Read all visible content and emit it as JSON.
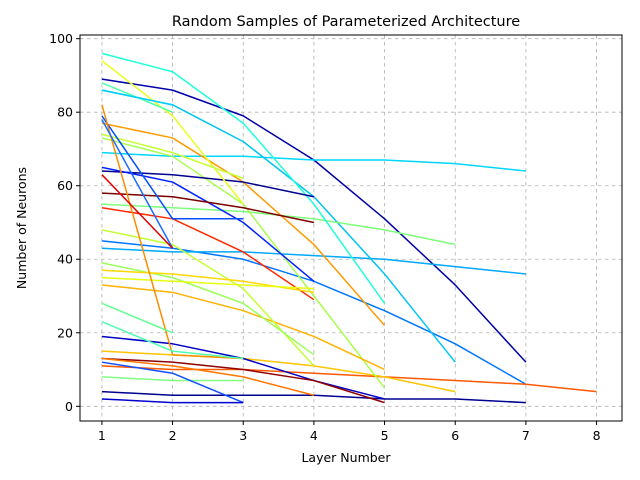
{
  "chart_data": {
    "type": "line",
    "title": "Random Samples of Parameterized Architecture",
    "xlabel": "Layer Number",
    "ylabel": "Number of Neurons",
    "xlim": [
      0.69,
      8.36
    ],
    "ylim": [
      -4,
      101
    ],
    "xticks": [
      1,
      2,
      3,
      4,
      5,
      6,
      7,
      8
    ],
    "yticks": [
      0,
      20,
      40,
      60,
      80,
      100
    ],
    "grid": true,
    "legend": "none",
    "series": [
      {
        "color": "#0000aa",
        "x": [
          1,
          2,
          3,
          4,
          5,
          6,
          7
        ],
        "y": [
          89,
          86,
          79,
          67,
          51,
          33,
          12
        ]
      },
      {
        "color": "#00d6ff",
        "x": [
          1,
          2,
          3,
          4,
          5,
          6,
          7
        ],
        "y": [
          69,
          68,
          68,
          67,
          67,
          66,
          64
        ]
      },
      {
        "color": "#0076ff",
        "x": [
          1,
          2,
          3,
          4,
          5,
          6,
          7
        ],
        "y": [
          45,
          43,
          40,
          34,
          26,
          17,
          6
        ]
      },
      {
        "color": "#00a8ff",
        "x": [
          1,
          2,
          3,
          4,
          5,
          6,
          7
        ],
        "y": [
          43,
          42,
          42,
          41,
          40,
          38,
          36
        ]
      },
      {
        "color": "#000090",
        "x": [
          1,
          2,
          3,
          4,
          5,
          6,
          7
        ],
        "y": [
          4,
          3,
          3,
          3,
          2,
          2,
          1
        ]
      },
      {
        "color": "#ff5a00",
        "x": [
          1,
          2,
          3,
          4,
          5,
          6,
          7,
          8
        ],
        "y": [
          11,
          10,
          10,
          9,
          8,
          7,
          6,
          4
        ]
      },
      {
        "color": "#00c4f2",
        "x": [
          1,
          2,
          3,
          4,
          5,
          6
        ],
        "y": [
          86,
          82,
          72,
          57,
          36,
          12
        ]
      },
      {
        "color": "#7cff7a",
        "x": [
          1,
          2,
          3,
          4,
          5,
          6
        ],
        "y": [
          55,
          54,
          53,
          51,
          48,
          44
        ]
      },
      {
        "color": "#ffc400",
        "x": [
          1,
          2,
          3,
          4,
          5,
          6
        ],
        "y": [
          15,
          14,
          13,
          11,
          8,
          4
        ]
      },
      {
        "color": "#1fffd8",
        "x": [
          1,
          2,
          3,
          4,
          5
        ],
        "y": [
          96,
          91,
          77,
          55,
          28
        ]
      },
      {
        "color": "#ff9a00",
        "x": [
          1,
          2,
          3,
          4,
          5
        ],
        "y": [
          77,
          73,
          61,
          44,
          22
        ]
      },
      {
        "color": "#a8ff4e",
        "x": [
          1,
          2,
          3,
          4,
          5
        ],
        "y": [
          73,
          68,
          55,
          30,
          5
        ]
      },
      {
        "color": "#ffb100",
        "x": [
          1,
          2,
          3,
          4,
          5
        ],
        "y": [
          33,
          31,
          26,
          19,
          10
        ]
      },
      {
        "color": "#0000c4",
        "x": [
          1,
          2,
          3,
          4,
          5
        ],
        "y": [
          19,
          17,
          13,
          7,
          2
        ]
      },
      {
        "color": "#900000",
        "x": [
          1,
          2,
          3,
          4,
          5
        ],
        "y": [
          13,
          12,
          10,
          7,
          1
        ]
      },
      {
        "color": "#000090",
        "x": [
          1,
          2,
          3,
          4
        ],
        "y": [
          64,
          63,
          61,
          57
        ]
      },
      {
        "color": "#0020ff",
        "x": [
          1,
          2,
          3,
          4
        ],
        "y": [
          65,
          61,
          50,
          34
        ]
      },
      {
        "color": "#7a0000",
        "x": [
          1,
          2,
          3,
          4
        ],
        "y": [
          58,
          57,
          54,
          50
        ]
      },
      {
        "color": "#ff2a00",
        "x": [
          1,
          2,
          3,
          4
        ],
        "y": [
          54,
          51,
          42,
          29
        ]
      },
      {
        "color": "#c4ff34",
        "x": [
          1,
          2,
          3,
          4
        ],
        "y": [
          48,
          44,
          32,
          11
        ]
      },
      {
        "color": "#9cff5a",
        "x": [
          1,
          2,
          3,
          4
        ],
        "y": [
          39,
          35,
          28,
          14
        ]
      },
      {
        "color": "#ffd800",
        "x": [
          1,
          2,
          3,
          4
        ],
        "y": [
          37,
          36,
          34,
          31
        ]
      },
      {
        "color": "#e6ff10",
        "x": [
          1,
          2,
          3,
          4
        ],
        "y": [
          35,
          34,
          33,
          32
        ]
      },
      {
        "color": "#ff7800",
        "x": [
          1,
          2,
          3,
          4
        ],
        "y": [
          13,
          11,
          8,
          3
        ]
      },
      {
        "color": "#e8ff20",
        "x": [
          1,
          2,
          3
        ],
        "y": [
          94,
          79,
          55
        ]
      },
      {
        "color": "#c8ff36",
        "x": [
          1,
          2,
          3
        ],
        "y": [
          74,
          69,
          62
        ]
      },
      {
        "color": "#0050ff",
        "x": [
          1,
          2,
          3
        ],
        "y": [
          79,
          51,
          51
        ]
      },
      {
        "color": "#ff8c00",
        "x": [
          1,
          2,
          3
        ],
        "y": [
          82,
          14,
          13
        ]
      },
      {
        "color": "#80ff80",
        "x": [
          1,
          2,
          3
        ],
        "y": [
          8,
          7,
          7
        ]
      },
      {
        "color": "#4fffb0",
        "x": [
          1,
          2,
          3
        ],
        "y": [
          23,
          15,
          13
        ]
      },
      {
        "color": "#1050ff",
        "x": [
          1,
          2,
          3
        ],
        "y": [
          12,
          9,
          1
        ]
      },
      {
        "color": "#0000d0",
        "x": [
          1,
          2,
          3
        ],
        "y": [
          2,
          1,
          1
        ]
      },
      {
        "color": "#4cffae",
        "x": [
          1,
          2
        ],
        "y": [
          88,
          80
        ]
      },
      {
        "color": "#00d0ff",
        "x": [
          1,
          2
        ],
        "y": [
          86,
          82
        ]
      },
      {
        "color": "#1e6cff",
        "x": [
          1,
          2
        ],
        "y": [
          78,
          43
        ]
      },
      {
        "color": "#e00000",
        "x": [
          1,
          2
        ],
        "y": [
          63,
          43
        ]
      },
      {
        "color": "#60ff90",
        "x": [
          1,
          2
        ],
        "y": [
          28,
          20
        ]
      }
    ]
  }
}
